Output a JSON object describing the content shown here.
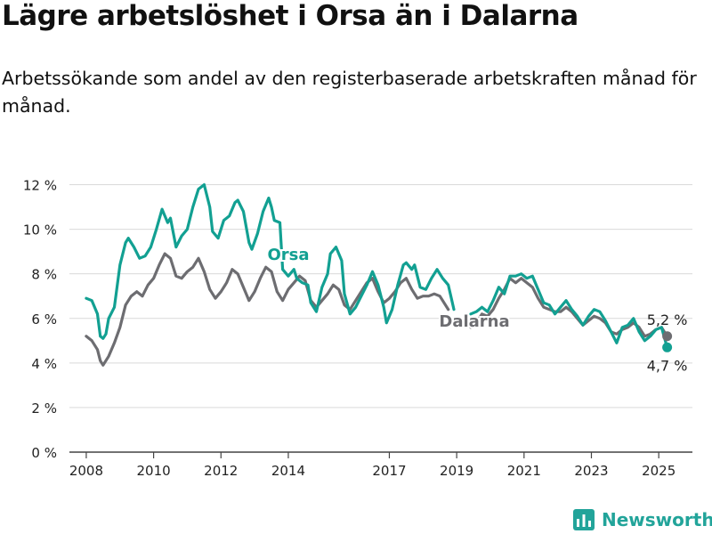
{
  "header": {
    "title": "Lägre arbetslöshet i Orsa än i Dalarna",
    "subtitle": "Arbetssökande som andel av den registerbaserade arbetskraften månad för månad."
  },
  "brand": {
    "name": "Newsworthy",
    "color": "#22a49a"
  },
  "chart_data": {
    "type": "line",
    "title": "Lägre arbetslöshet i Orsa än i Dalarna",
    "subtitle": "Arbetssökande som andel av den registerbaserade arbetskraften månad för månad.",
    "xlabel": "",
    "ylabel": "",
    "x_ticks": [
      "2008",
      "2010",
      "2012",
      "2014",
      "2017",
      "2019",
      "2021",
      "2023",
      "2025"
    ],
    "y_ticks": [
      "0 %",
      "2 %",
      "4 %",
      "6 %",
      "8 %",
      "10 %",
      "12 %"
    ],
    "ylim": [
      0,
      12.5
    ],
    "grid": "horizontal",
    "legend": "inline labels",
    "series": [
      {
        "name": "Orsa",
        "color": "#12a092",
        "label_position": "between 2013 and 2014",
        "end_label": "4,7 %",
        "points": [
          [
            "2008-01",
            6.9
          ],
          [
            "2008-03",
            6.8
          ],
          [
            "2008-05",
            6.2
          ],
          [
            "2008-06",
            5.2
          ],
          [
            "2008-07",
            5.1
          ],
          [
            "2008-08",
            5.3
          ],
          [
            "2008-09",
            6.0
          ],
          [
            "2008-11",
            6.5
          ],
          [
            "2009-01",
            8.4
          ],
          [
            "2009-03",
            9.4
          ],
          [
            "2009-04",
            9.6
          ],
          [
            "2009-06",
            9.2
          ],
          [
            "2009-08",
            8.7
          ],
          [
            "2009-10",
            8.8
          ],
          [
            "2009-12",
            9.2
          ],
          [
            "2010-02",
            10.0
          ],
          [
            "2010-04",
            10.9
          ],
          [
            "2010-06",
            10.3
          ],
          [
            "2010-07",
            10.5
          ],
          [
            "2010-09",
            9.2
          ],
          [
            "2010-11",
            9.7
          ],
          [
            "2011-01",
            10.0
          ],
          [
            "2011-03",
            11.0
          ],
          [
            "2011-05",
            11.8
          ],
          [
            "2011-07",
            12.0
          ],
          [
            "2011-09",
            11.0
          ],
          [
            "2011-10",
            9.9
          ],
          [
            "2011-12",
            9.6
          ],
          [
            "2012-02",
            10.4
          ],
          [
            "2012-04",
            10.6
          ],
          [
            "2012-06",
            11.2
          ],
          [
            "2012-07",
            11.3
          ],
          [
            "2012-09",
            10.8
          ],
          [
            "2012-11",
            9.4
          ],
          [
            "2012-12",
            9.1
          ],
          [
            "2013-02",
            9.8
          ],
          [
            "2013-04",
            10.8
          ],
          [
            "2013-06",
            11.4
          ],
          [
            "2013-07",
            11.0
          ],
          [
            "2013-08",
            10.4
          ],
          [
            "2013-10",
            10.3
          ],
          [
            "2013-11",
            8.2
          ],
          [
            "2014-01",
            7.9
          ],
          [
            "2014-03",
            8.2
          ],
          [
            "2014-04",
            7.8
          ],
          [
            "2014-06",
            7.6
          ],
          [
            "2014-08",
            7.5
          ],
          [
            "2014-09",
            6.7
          ],
          [
            "2014-11",
            6.3
          ],
          [
            "2015-01",
            7.4
          ],
          [
            "2015-03",
            8.0
          ],
          [
            "2015-04",
            8.9
          ],
          [
            "2015-06",
            9.2
          ],
          [
            "2015-08",
            8.6
          ],
          [
            "2015-09",
            7.1
          ],
          [
            "2015-11",
            6.2
          ],
          [
            "2016-01",
            6.5
          ],
          [
            "2016-03",
            7.0
          ],
          [
            "2016-05",
            7.5
          ],
          [
            "2016-07",
            8.1
          ],
          [
            "2016-09",
            7.5
          ],
          [
            "2016-11",
            6.5
          ],
          [
            "2016-12",
            5.8
          ],
          [
            "2017-02",
            6.4
          ],
          [
            "2017-04",
            7.5
          ],
          [
            "2017-06",
            8.4
          ],
          [
            "2017-07",
            8.5
          ],
          [
            "2017-09",
            8.2
          ],
          [
            "2017-10",
            8.4
          ],
          [
            "2017-12",
            7.4
          ],
          [
            "2018-02",
            7.3
          ],
          [
            "2018-04",
            7.8
          ],
          [
            "2018-06",
            8.2
          ],
          [
            "2018-08",
            7.8
          ],
          [
            "2018-10",
            7.5
          ],
          [
            "2018-12",
            6.4
          ],
          [
            "2019-06",
            6.2
          ],
          [
            "2019-08",
            6.3
          ],
          [
            "2019-10",
            6.5
          ],
          [
            "2019-12",
            6.3
          ],
          [
            "2020-02",
            6.8
          ],
          [
            "2020-04",
            7.4
          ],
          [
            "2020-06",
            7.1
          ],
          [
            "2020-08",
            7.9
          ],
          [
            "2020-10",
            7.9
          ],
          [
            "2020-12",
            8.0
          ],
          [
            "2021-02",
            7.8
          ],
          [
            "2021-04",
            7.9
          ],
          [
            "2021-06",
            7.3
          ],
          [
            "2021-08",
            6.7
          ],
          [
            "2021-10",
            6.6
          ],
          [
            "2021-12",
            6.2
          ],
          [
            "2022-02",
            6.5
          ],
          [
            "2022-04",
            6.8
          ],
          [
            "2022-06",
            6.4
          ],
          [
            "2022-08",
            6.1
          ],
          [
            "2022-10",
            5.7
          ],
          [
            "2022-12",
            6.1
          ],
          [
            "2023-02",
            6.4
          ],
          [
            "2023-04",
            6.3
          ],
          [
            "2023-06",
            5.9
          ],
          [
            "2023-08",
            5.4
          ],
          [
            "2023-10",
            4.9
          ],
          [
            "2023-12",
            5.6
          ],
          [
            "2024-02",
            5.7
          ],
          [
            "2024-04",
            6.0
          ],
          [
            "2024-06",
            5.4
          ],
          [
            "2024-08",
            5.0
          ],
          [
            "2024-10",
            5.2
          ],
          [
            "2024-12",
            5.5
          ],
          [
            "2025-02",
            5.6
          ],
          [
            "2025-04",
            4.7
          ]
        ]
      },
      {
        "name": "Dalarna",
        "color": "#6d6d71",
        "label_position": "near 2019",
        "end_label": "5,2 %",
        "points": [
          [
            "2008-01",
            5.2
          ],
          [
            "2008-03",
            5.0
          ],
          [
            "2008-05",
            4.6
          ],
          [
            "2008-06",
            4.1
          ],
          [
            "2008-07",
            3.9
          ],
          [
            "2008-09",
            4.3
          ],
          [
            "2008-11",
            4.9
          ],
          [
            "2009-01",
            5.6
          ],
          [
            "2009-03",
            6.6
          ],
          [
            "2009-05",
            7.0
          ],
          [
            "2009-07",
            7.2
          ],
          [
            "2009-09",
            7.0
          ],
          [
            "2009-11",
            7.5
          ],
          [
            "2010-01",
            7.8
          ],
          [
            "2010-03",
            8.4
          ],
          [
            "2010-05",
            8.9
          ],
          [
            "2010-07",
            8.7
          ],
          [
            "2010-09",
            7.9
          ],
          [
            "2010-11",
            7.8
          ],
          [
            "2011-01",
            8.1
          ],
          [
            "2011-03",
            8.3
          ],
          [
            "2011-05",
            8.7
          ],
          [
            "2011-07",
            8.1
          ],
          [
            "2011-09",
            7.3
          ],
          [
            "2011-11",
            6.9
          ],
          [
            "2012-01",
            7.2
          ],
          [
            "2012-03",
            7.6
          ],
          [
            "2012-05",
            8.2
          ],
          [
            "2012-07",
            8.0
          ],
          [
            "2012-09",
            7.4
          ],
          [
            "2012-11",
            6.8
          ],
          [
            "2013-01",
            7.2
          ],
          [
            "2013-03",
            7.8
          ],
          [
            "2013-05",
            8.3
          ],
          [
            "2013-07",
            8.1
          ],
          [
            "2013-09",
            7.2
          ],
          [
            "2013-11",
            6.8
          ],
          [
            "2014-01",
            7.3
          ],
          [
            "2014-03",
            7.6
          ],
          [
            "2014-05",
            7.9
          ],
          [
            "2014-07",
            7.7
          ],
          [
            "2014-09",
            6.8
          ],
          [
            "2014-11",
            6.5
          ],
          [
            "2015-01",
            6.8
          ],
          [
            "2015-03",
            7.1
          ],
          [
            "2015-05",
            7.5
          ],
          [
            "2015-07",
            7.3
          ],
          [
            "2015-09",
            6.6
          ],
          [
            "2015-11",
            6.4
          ],
          [
            "2016-01",
            6.8
          ],
          [
            "2016-03",
            7.2
          ],
          [
            "2016-05",
            7.6
          ],
          [
            "2016-07",
            7.8
          ],
          [
            "2016-09",
            7.2
          ],
          [
            "2016-11",
            6.7
          ],
          [
            "2017-01",
            6.9
          ],
          [
            "2017-03",
            7.2
          ],
          [
            "2017-05",
            7.6
          ],
          [
            "2017-07",
            7.8
          ],
          [
            "2017-09",
            7.3
          ],
          [
            "2017-11",
            6.9
          ],
          [
            "2018-01",
            7.0
          ],
          [
            "2018-03",
            7.0
          ],
          [
            "2018-05",
            7.1
          ],
          [
            "2018-07",
            7.0
          ],
          [
            "2018-09",
            6.6
          ],
          [
            "2018-10",
            6.4
          ],
          [
            "2019-06",
            5.6
          ],
          [
            "2019-08",
            5.8
          ],
          [
            "2019-10",
            6.2
          ],
          [
            "2019-12",
            6.1
          ],
          [
            "2020-02",
            6.4
          ],
          [
            "2020-04",
            6.9
          ],
          [
            "2020-06",
            7.3
          ],
          [
            "2020-08",
            7.8
          ],
          [
            "2020-10",
            7.6
          ],
          [
            "2020-12",
            7.8
          ],
          [
            "2021-02",
            7.6
          ],
          [
            "2021-04",
            7.4
          ],
          [
            "2021-06",
            6.9
          ],
          [
            "2021-08",
            6.5
          ],
          [
            "2021-10",
            6.4
          ],
          [
            "2021-12",
            6.3
          ],
          [
            "2022-02",
            6.3
          ],
          [
            "2022-04",
            6.5
          ],
          [
            "2022-06",
            6.3
          ],
          [
            "2022-08",
            6.0
          ],
          [
            "2022-10",
            5.7
          ],
          [
            "2022-12",
            5.9
          ],
          [
            "2023-02",
            6.1
          ],
          [
            "2023-04",
            6.0
          ],
          [
            "2023-06",
            5.8
          ],
          [
            "2023-08",
            5.4
          ],
          [
            "2023-10",
            5.3
          ],
          [
            "2023-12",
            5.5
          ],
          [
            "2024-02",
            5.6
          ],
          [
            "2024-04",
            5.8
          ],
          [
            "2024-06",
            5.6
          ],
          [
            "2024-08",
            5.2
          ],
          [
            "2024-10",
            5.3
          ],
          [
            "2024-12",
            5.5
          ],
          [
            "2025-02",
            5.6
          ],
          [
            "2025-04",
            5.2
          ]
        ]
      }
    ]
  }
}
